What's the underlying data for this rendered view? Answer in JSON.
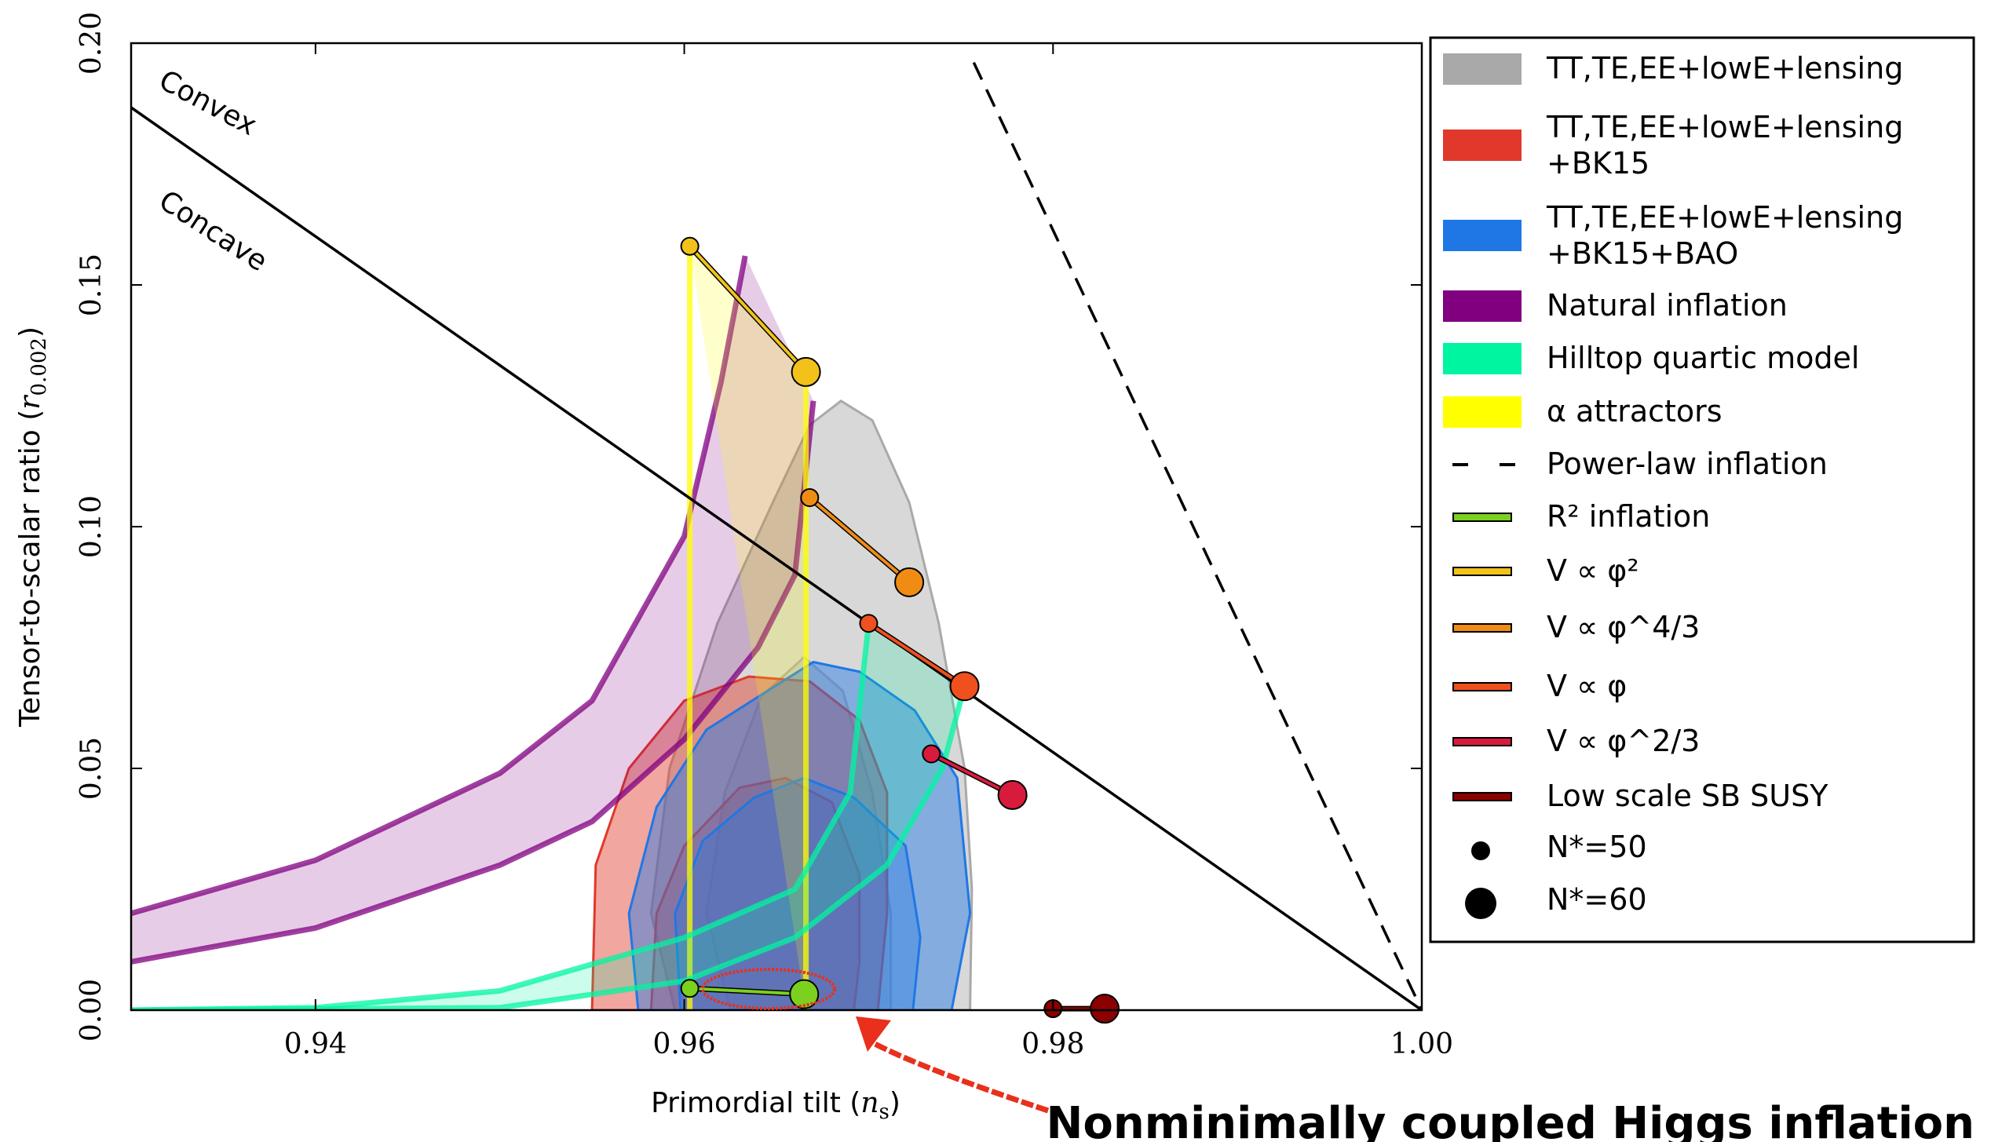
{
  "chart_data": {
    "type": "scatter",
    "xlabel": "Primordial tilt (n_s)",
    "ylabel": "Tensor-to-scalar ratio (r_0.002)",
    "xlim": [
      0.93,
      1.0
    ],
    "ylim": [
      0.0,
      0.2
    ],
    "xticks": [
      "0.94",
      "0.96",
      "0.98",
      "1.00"
    ],
    "yticks": [
      "0.00",
      "0.05",
      "0.10",
      "0.15",
      "0.20"
    ],
    "grid": false,
    "legend_position": "right",
    "legend": [
      {
        "label": "TT,TE,EE+lowE+lensing",
        "kind": "patch",
        "color": "#a9a9a9"
      },
      {
        "label": "TT,TE,EE+lowE+lensing\n+BK15",
        "kind": "patch",
        "color": "#e0392b"
      },
      {
        "label": "TT,TE,EE+lowE+lensing\n+BK15+BAO",
        "kind": "patch",
        "color": "#1f77e6"
      },
      {
        "label": "Natural inflation",
        "kind": "patch",
        "color": "#800080"
      },
      {
        "label": "Hilltop quartic model",
        "kind": "patch",
        "color": "#00f5a0"
      },
      {
        "label": "α attractors",
        "kind": "patch",
        "color": "#ffff00"
      },
      {
        "label": "Power-law inflation",
        "kind": "dash",
        "color": "#000000"
      },
      {
        "label": "R² inflation",
        "kind": "line",
        "color": "#7cd11f"
      },
      {
        "label": "V ∝ φ²",
        "kind": "line",
        "color": "#f2c21b"
      },
      {
        "label": "V ∝ φ^4/3",
        "kind": "line",
        "color": "#f08c14"
      },
      {
        "label": "V ∝ φ",
        "kind": "line",
        "color": "#f0501e"
      },
      {
        "label": "V ∝ φ^2/3",
        "kind": "line",
        "color": "#d81b3c"
      },
      {
        "label": "Low scale SB SUSY",
        "kind": "line",
        "color": "#8b0000"
      },
      {
        "label": "N*=50",
        "kind": "dot-small",
        "color": "#000000"
      },
      {
        "label": "N*=60",
        "kind": "dot-large",
        "color": "#000000"
      }
    ],
    "annotations": [
      "Convex",
      "Concave",
      "Nonminimally coupled Higgs inflation"
    ],
    "contours": [
      {
        "name": "TT,TE,EE+lowE+lensing",
        "color": "#a9a9a9",
        "outer": [
          [
            0.9595,
            0.0
          ],
          [
            0.9582,
            0.02
          ],
          [
            0.9592,
            0.05
          ],
          [
            0.9618,
            0.08
          ],
          [
            0.9648,
            0.105
          ],
          [
            0.9668,
            0.121
          ],
          [
            0.9685,
            0.126
          ],
          [
            0.9702,
            0.122
          ],
          [
            0.9722,
            0.105
          ],
          [
            0.9738,
            0.08
          ],
          [
            0.9752,
            0.05
          ],
          [
            0.9756,
            0.025
          ],
          [
            0.9755,
            0.0
          ]
        ],
        "inner": [
          [
            0.9625,
            0.0
          ],
          [
            0.9612,
            0.02
          ],
          [
            0.9622,
            0.045
          ],
          [
            0.9642,
            0.065
          ],
          [
            0.9665,
            0.073
          ],
          [
            0.9686,
            0.066
          ],
          [
            0.9702,
            0.045
          ],
          [
            0.9712,
            0.02
          ],
          [
            0.9712,
            0.0
          ]
        ]
      },
      {
        "name": "TT,TE,EE+lowE+lensing+BK15",
        "color": "#e0392b",
        "outer": [
          [
            0.955,
            0.0
          ],
          [
            0.9552,
            0.03
          ],
          [
            0.957,
            0.05
          ],
          [
            0.96,
            0.064
          ],
          [
            0.9635,
            0.069
          ],
          [
            0.9668,
            0.068
          ],
          [
            0.9695,
            0.06
          ],
          [
            0.971,
            0.045
          ],
          [
            0.971,
            0.02
          ],
          [
            0.9705,
            0.0
          ]
        ],
        "inner": [
          [
            0.9582,
            0.0
          ],
          [
            0.9585,
            0.02
          ],
          [
            0.96,
            0.034
          ],
          [
            0.963,
            0.046
          ],
          [
            0.9655,
            0.048
          ],
          [
            0.968,
            0.043
          ],
          [
            0.9695,
            0.028
          ],
          [
            0.9695,
            0.01
          ],
          [
            0.9692,
            0.0
          ]
        ]
      },
      {
        "name": "TT,TE,EE+lowE+lensing+BK15+BAO",
        "color": "#1f77e6",
        "outer": [
          [
            0.9575,
            0.0
          ],
          [
            0.957,
            0.02
          ],
          [
            0.9585,
            0.042
          ],
          [
            0.9612,
            0.058
          ],
          [
            0.9645,
            0.066
          ],
          [
            0.967,
            0.072
          ],
          [
            0.9695,
            0.07
          ],
          [
            0.9725,
            0.062
          ],
          [
            0.9748,
            0.048
          ],
          [
            0.9755,
            0.02
          ],
          [
            0.9745,
            0.0
          ]
        ],
        "inner": [
          [
            0.9598,
            0.0
          ],
          [
            0.9595,
            0.02
          ],
          [
            0.961,
            0.035
          ],
          [
            0.9638,
            0.044
          ],
          [
            0.9665,
            0.048
          ],
          [
            0.9692,
            0.044
          ],
          [
            0.972,
            0.034
          ],
          [
            0.9728,
            0.015
          ],
          [
            0.9724,
            0.0
          ]
        ]
      }
    ],
    "bands": [
      {
        "name": "Natural inflation",
        "color": "#800080",
        "upper": [
          [
            0.93,
            0.02
          ],
          [
            0.94,
            0.031
          ],
          [
            0.95,
            0.049
          ],
          [
            0.955,
            0.064
          ],
          [
            0.96,
            0.098
          ],
          [
            0.962,
            0.13
          ],
          [
            0.9633,
            0.156
          ]
        ],
        "lower": [
          [
            0.93,
            0.01
          ],
          [
            0.94,
            0.017
          ],
          [
            0.95,
            0.03
          ],
          [
            0.955,
            0.039
          ],
          [
            0.96,
            0.056
          ],
          [
            0.964,
            0.075
          ],
          [
            0.966,
            0.09
          ],
          [
            0.967,
            0.126
          ]
        ]
      },
      {
        "name": "α attractors",
        "color": "#ffff00",
        "upper": [
          [
            0.9603,
            0.158
          ],
          [
            0.9666,
            0.132
          ],
          [
            0.9666,
            0.0
          ]
        ],
        "lower": [
          [
            0.9603,
            0.0
          ],
          [
            0.9603,
            0.158
          ]
        ]
      },
      {
        "name": "Hilltop quartic model",
        "color": "#00f5a0",
        "upper": [
          [
            0.93,
            0.0
          ],
          [
            0.94,
            0.0005
          ],
          [
            0.95,
            0.004
          ],
          [
            0.96,
            0.015
          ],
          [
            0.966,
            0.025
          ],
          [
            0.969,
            0.045
          ],
          [
            0.97,
            0.08
          ]
        ],
        "lower": [
          [
            0.93,
            0.0
          ],
          [
            0.95,
            0.0005
          ],
          [
            0.96,
            0.006
          ],
          [
            0.966,
            0.015
          ],
          [
            0.971,
            0.03
          ],
          [
            0.974,
            0.05
          ],
          [
            0.9752,
            0.067
          ]
        ]
      }
    ],
    "series": [
      {
        "name": "R² inflation",
        "color": "#7cd11f",
        "x": [
          0.9603,
          0.9665
        ],
        "y": [
          0.0045,
          0.0033
        ]
      },
      {
        "name": "V ∝ φ²",
        "color": "#f2c21b",
        "x": [
          0.9603,
          0.9666
        ],
        "y": [
          0.158,
          0.132
        ]
      },
      {
        "name": "V ∝ φ^4/3",
        "color": "#f08c14",
        "x": [
          0.9668,
          0.9722
        ],
        "y": [
          0.106,
          0.0885
        ]
      },
      {
        "name": "V ∝ φ",
        "color": "#f0501e",
        "x": [
          0.97,
          0.9752
        ],
        "y": [
          0.08,
          0.067
        ]
      },
      {
        "name": "V ∝ φ^2/3",
        "color": "#d81b3c",
        "x": [
          0.9734,
          0.9778
        ],
        "y": [
          0.053,
          0.0445
        ]
      },
      {
        "name": "Low scale SB SUSY",
        "color": "#8b0000",
        "x": [
          0.98,
          0.9828
        ],
        "y": [
          0.0003,
          0.0003
        ]
      }
    ],
    "reference_lines": [
      {
        "name": "Convex/Concave boundary",
        "style": "solid",
        "x": [
          0.93,
          1.0
        ],
        "y": [
          0.1867,
          0.0
        ]
      },
      {
        "name": "Power-law inflation",
        "style": "dashed",
        "x": [
          0.9757,
          1.0
        ],
        "y": [
          0.196,
          0.0
        ]
      }
    ]
  }
}
